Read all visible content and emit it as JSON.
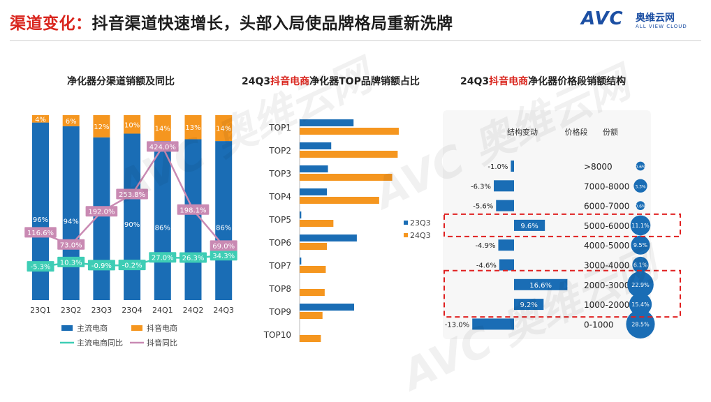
{
  "header": {
    "title_accent": "渠道变化：",
    "title_rest": "抖音渠道快速增长，头部入局使品牌格局重新洗牌",
    "logo_mark": "AVC",
    "logo_cn": "奥维云网",
    "logo_en": "ALL VIEW CLOUD"
  },
  "subtitles": {
    "chart1": "净化器分渠道销额及同比",
    "chart2_a": "24Q3",
    "chart2_red": "抖音电商",
    "chart2_b": "净化器TOP品牌销额占比",
    "chart3_a": "24Q3",
    "chart3_red": "抖音电商",
    "chart3_b": "净化器价格段销额结构"
  },
  "watermark": "AVC 奥维云网",
  "colors": {
    "blue": "#1a6db5",
    "orange": "#f5961f",
    "teal": "#3ecdb5",
    "pink": "#c98ab3",
    "red_dash": "#e02020"
  },
  "chart_data": [
    {
      "type": "bar",
      "stacked": true,
      "categories": [
        "23Q1",
        "23Q2",
        "23Q3",
        "23Q4",
        "24Q1",
        "24Q2",
        "24Q3"
      ],
      "series": [
        {
          "name": "主流电商",
          "values": [
            96,
            94,
            88,
            90,
            86,
            87,
            86
          ],
          "labels": [
            "96%",
            "94%",
            "",
            "90%",
            "86%",
            "",
            "86%"
          ]
        },
        {
          "name": "抖音电商",
          "values": [
            4,
            6,
            12,
            10,
            14,
            13,
            14
          ],
          "labels": [
            "4%",
            "6%",
            "12%",
            "10%",
            "14%",
            "13%",
            "14%"
          ]
        }
      ],
      "lines": [
        {
          "name": "主流电商同比",
          "values": [
            -5.3,
            10.3,
            -0.9,
            -0.2,
            27.0,
            26.3,
            34.3
          ],
          "labels": [
            "-5.3%",
            "10.3%",
            "-0.9%",
            "-0.2%",
            "27.0%",
            "26.3%",
            "34.3%"
          ]
        },
        {
          "name": "抖音同比",
          "values": [
            116.6,
            73.0,
            192.0,
            253.8,
            424.0,
            198.1,
            69.0
          ],
          "labels": [
            "116.6%",
            "73.0%",
            "192.0%",
            "253.8%",
            "424.0%",
            "198.1%",
            "69.0%"
          ]
        }
      ],
      "legend": [
        "主流电商",
        "抖音电商",
        "主流电商同比",
        "抖音同比"
      ]
    },
    {
      "type": "bar",
      "orientation": "horizontal",
      "categories": [
        "TOP1",
        "TOP2",
        "TOP3",
        "TOP4",
        "TOP5",
        "TOP6",
        "TOP7",
        "TOP8",
        "TOP9",
        "TOP10"
      ],
      "series": [
        {
          "name": "23Q3",
          "values": [
            9.9,
            5.8,
            5.2,
            5.0,
            0.3,
            10.5,
            0.3,
            0.0,
            10.0,
            0.0
          ]
        },
        {
          "name": "24Q3",
          "values": [
            18.2,
            18.0,
            17.0,
            14.6,
            6.2,
            5.0,
            4.8,
            4.6,
            4.2,
            3.9
          ]
        }
      ],
      "legend": [
        "23Q3",
        "24Q3"
      ]
    },
    {
      "type": "table",
      "columns": [
        "结构变动",
        "价格段",
        "份额"
      ],
      "rows": [
        {
          "change": -1.0,
          "change_label": "-1.0%",
          "segment": ">8000",
          "share": 0.6,
          "share_label": "0.6%"
        },
        {
          "change": -6.3,
          "change_label": "-6.3%",
          "segment": "7000-8000",
          "share": 3.3,
          "share_label": "3.3%"
        },
        {
          "change": -5.6,
          "change_label": "-5.6%",
          "segment": "6000-7000",
          "share": 0.6,
          "share_label": "0.6%"
        },
        {
          "change": 9.6,
          "change_label": "9.6%",
          "segment": "5000-6000",
          "share": 11.1,
          "share_label": "11.1%"
        },
        {
          "change": -4.9,
          "change_label": "-4.9%",
          "segment": "4000-5000",
          "share": 9.5,
          "share_label": "9.5%"
        },
        {
          "change": -4.6,
          "change_label": "-4.6%",
          "segment": "3000-4000",
          "share": 6.1,
          "share_label": "6.1%"
        },
        {
          "change": 16.6,
          "change_label": "16.6%",
          "segment": "2000-3000",
          "share": 22.9,
          "share_label": "22.9%"
        },
        {
          "change": 9.2,
          "change_label": "9.2%",
          "segment": "1000-2000",
          "share": 15.4,
          "share_label": "15.4%"
        },
        {
          "change": -13.0,
          "change_label": "-13.0%",
          "segment": "0-1000",
          "share": 28.5,
          "share_label": "28.5%"
        }
      ],
      "highlighted_segments": [
        "5000-6000",
        "2000-3000",
        "1000-2000"
      ]
    }
  ]
}
